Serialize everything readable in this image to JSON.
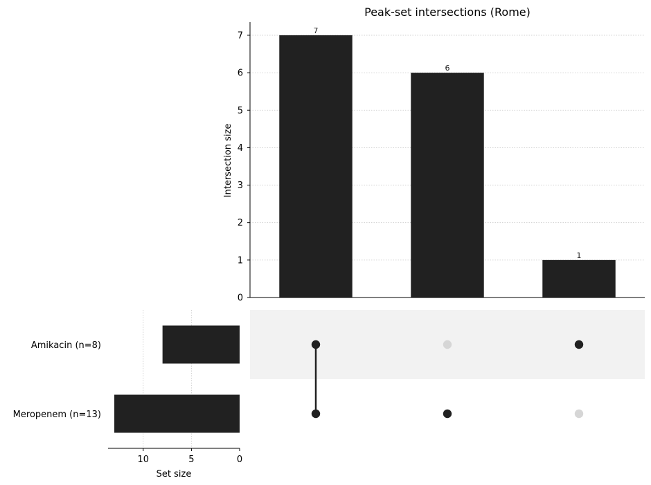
{
  "chart_data": {
    "type": "bar",
    "title": "Peak-set intersections (Rome)",
    "intersections": {
      "ylabel": "Intersection size",
      "ylim": [
        0,
        7.35
      ],
      "yticks": [
        0,
        1,
        2,
        3,
        4,
        5,
        6,
        7
      ],
      "values": [
        7,
        6,
        1
      ],
      "value_labels": [
        "7",
        "6",
        "1"
      ],
      "memberships": [
        [
          "Amikacin",
          "Meropenem"
        ],
        [
          "Meropenem"
        ],
        [
          "Amikacin"
        ]
      ]
    },
    "sets": {
      "xlabel": "Set size",
      "names": [
        "Amikacin",
        "Meropenem"
      ],
      "labels": [
        "Amikacin (n=8)",
        "Meropenem (n=13)"
      ],
      "sizes": [
        8,
        13
      ],
      "xlim": [
        13.65,
        0
      ],
      "xticks": [
        10,
        5,
        0
      ]
    },
    "grid": true,
    "colors": {
      "bar": "#212121",
      "dot_active": "#212121",
      "dot_inactive": "#d6d6d6",
      "stripe": "#f2f2f2",
      "grid": "#c8c8c8"
    }
  }
}
